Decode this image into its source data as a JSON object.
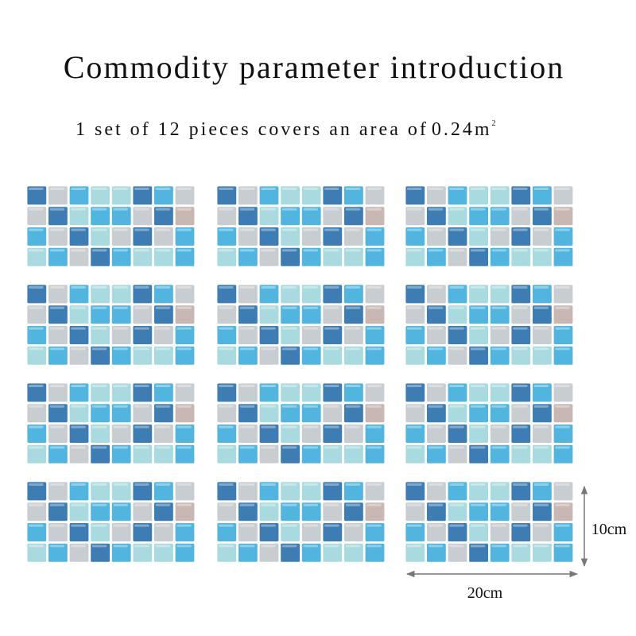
{
  "header": {
    "title": "Commodity parameter introduction",
    "subtitle": {
      "text": "1 set of 12 pieces covers an area of",
      "value": "0.24m",
      "superscript": "2"
    }
  },
  "dimensions": {
    "height": "10cm",
    "width": "20cm"
  }
}
